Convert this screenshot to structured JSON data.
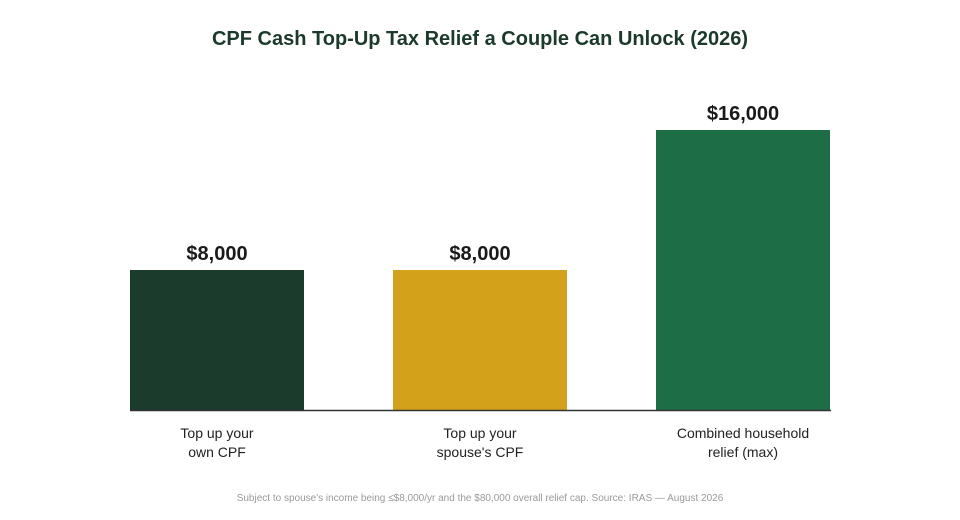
{
  "chart_data": {
    "type": "bar",
    "title": "CPF Cash Top-Up Tax Relief a Couple Can Unlock (2026)",
    "categories": [
      [
        "Top up your",
        "own CPF"
      ],
      [
        "Top up your",
        "spouse's CPF"
      ],
      [
        "Combined household",
        "relief (max)"
      ]
    ],
    "values": [
      8000,
      8000,
      16000
    ],
    "value_labels": [
      "$8,000",
      "$8,000",
      "$16,000"
    ],
    "colors": [
      "#1b3b2c",
      "#d4a21a",
      "#1d6e46"
    ],
    "ylim": [
      0,
      16000
    ],
    "grid": false,
    "legend": "none",
    "xlabel": "",
    "ylabel": "",
    "footnote": "Subject to spouse's income being ≤$8,000/yr and the $80,000 overall relief cap. Source: IRAS — August 2026"
  }
}
